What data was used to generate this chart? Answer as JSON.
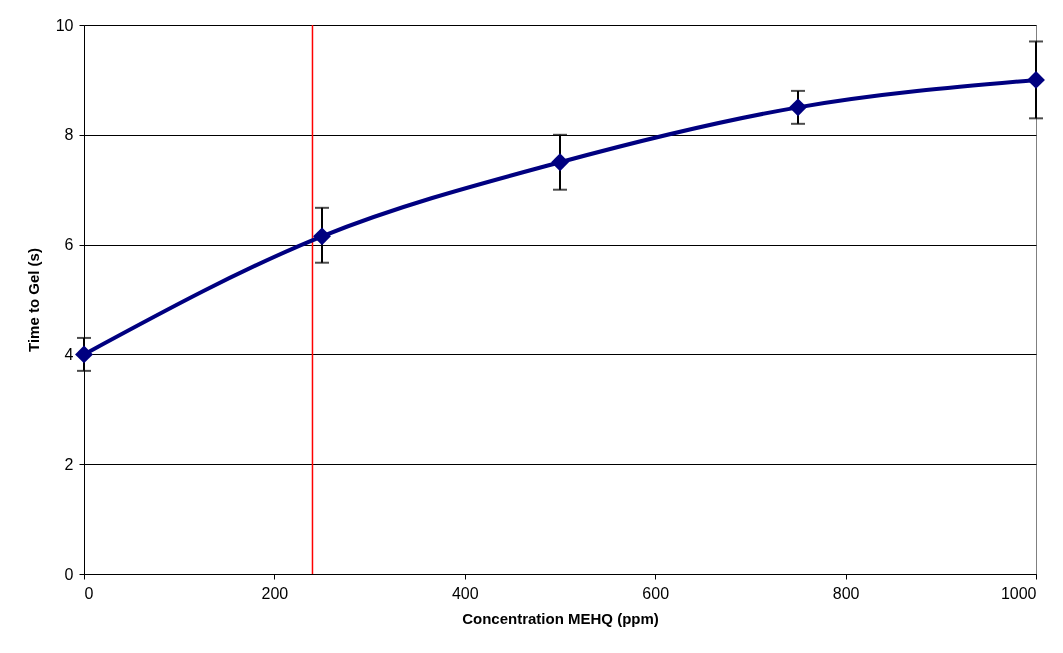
{
  "chart_data": {
    "type": "line",
    "xlabel": "Concentration MEHQ (ppm)",
    "ylabel": "Time to Gel (s)",
    "x": [
      0,
      250,
      500,
      750,
      1000
    ],
    "series": [
      {
        "color": "#000080",
        "values": [
          4.0,
          6.15,
          7.5,
          8.5,
          9.0
        ],
        "errors": [
          [
            3.7,
            4.3
          ],
          [
            5.67,
            6.67
          ],
          [
            7.0,
            8.0
          ],
          [
            8.2,
            8.8
          ],
          [
            8.3,
            9.7
          ]
        ]
      }
    ],
    "xlim": [
      0,
      1000
    ],
    "xticks": [
      0,
      200,
      400,
      600,
      800,
      1000
    ],
    "ylim": [
      0,
      10
    ],
    "yticks": [
      0,
      2,
      4,
      6,
      8,
      10
    ],
    "grid": "y",
    "marker": "diamond",
    "line_style": "solid",
    "ref_lines": [
      {
        "axis": "x",
        "value": 240,
        "color": "#ff0000"
      }
    ]
  }
}
